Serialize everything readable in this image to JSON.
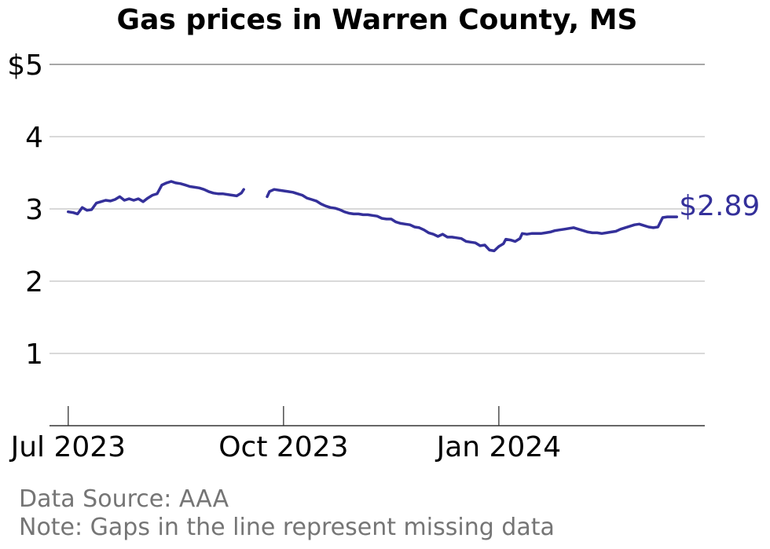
{
  "chart_data": {
    "type": "line",
    "title": "Gas prices in Warren County, MS",
    "xlabel": "",
    "ylabel": "",
    "ylim": [
      0,
      5
    ],
    "xlim": [
      "2023-06-23",
      "2024-03-29"
    ],
    "yticks": [
      {
        "value": 1,
        "label": "1"
      },
      {
        "value": 2,
        "label": "2"
      },
      {
        "value": 3,
        "label": "3"
      },
      {
        "value": 4,
        "label": "4"
      },
      {
        "value": 5,
        "label": "$5"
      }
    ],
    "xticks": [
      {
        "date": "2023-07-01",
        "label": "Jul 2023"
      },
      {
        "date": "2023-10-01",
        "label": "Oct 2023"
      },
      {
        "date": "2024-01-01",
        "label": "Jan 2024"
      }
    ],
    "grid": true,
    "end_label": "$2.89",
    "colors": {
      "line": "#34309a",
      "grid": "#b3b3b3",
      "axis": "#333333",
      "footnote": "#757575"
    },
    "series": [
      {
        "segments": [
          [
            [
              "2023-07-01",
              2.96
            ],
            [
              "2023-07-03",
              2.95
            ],
            [
              "2023-07-05",
              2.93
            ],
            [
              "2023-07-07",
              3.02
            ],
            [
              "2023-07-09",
              2.98
            ],
            [
              "2023-07-11",
              2.99
            ],
            [
              "2023-07-13",
              3.08
            ],
            [
              "2023-07-15",
              3.1
            ],
            [
              "2023-07-17",
              3.12
            ],
            [
              "2023-07-19",
              3.11
            ],
            [
              "2023-07-21",
              3.13
            ],
            [
              "2023-07-23",
              3.17
            ],
            [
              "2023-07-25",
              3.12
            ],
            [
              "2023-07-27",
              3.14
            ],
            [
              "2023-07-29",
              3.12
            ],
            [
              "2023-07-31",
              3.14
            ],
            [
              "2023-08-02",
              3.1
            ],
            [
              "2023-08-04",
              3.15
            ],
            [
              "2023-08-06",
              3.19
            ],
            [
              "2023-08-08",
              3.21
            ],
            [
              "2023-08-10",
              3.33
            ],
            [
              "2023-08-12",
              3.36
            ],
            [
              "2023-08-14",
              3.38
            ],
            [
              "2023-08-16",
              3.36
            ],
            [
              "2023-08-18",
              3.35
            ],
            [
              "2023-08-20",
              3.33
            ],
            [
              "2023-08-22",
              3.31
            ],
            [
              "2023-08-24",
              3.3
            ],
            [
              "2023-08-26",
              3.29
            ],
            [
              "2023-08-28",
              3.27
            ],
            [
              "2023-08-30",
              3.24
            ],
            [
              "2023-09-01",
              3.22
            ],
            [
              "2023-09-03",
              3.21
            ],
            [
              "2023-09-05",
              3.21
            ],
            [
              "2023-09-07",
              3.2
            ],
            [
              "2023-09-09",
              3.19
            ],
            [
              "2023-09-11",
              3.18
            ],
            [
              "2023-09-13",
              3.22
            ],
            [
              "2023-09-14",
              3.27
            ]
          ],
          [
            [
              "2023-09-24",
              3.17
            ],
            [
              "2023-09-25",
              3.24
            ],
            [
              "2023-09-27",
              3.27
            ],
            [
              "2023-09-29",
              3.26
            ],
            [
              "2023-10-01",
              3.25
            ],
            [
              "2023-10-03",
              3.24
            ],
            [
              "2023-10-05",
              3.23
            ],
            [
              "2023-10-07",
              3.21
            ],
            [
              "2023-10-09",
              3.19
            ],
            [
              "2023-10-11",
              3.15
            ],
            [
              "2023-10-13",
              3.13
            ],
            [
              "2023-10-15",
              3.11
            ],
            [
              "2023-10-17",
              3.07
            ],
            [
              "2023-10-19",
              3.04
            ],
            [
              "2023-10-21",
              3.02
            ],
            [
              "2023-10-23",
              3.01
            ],
            [
              "2023-10-25",
              2.99
            ],
            [
              "2023-10-27",
              2.96
            ],
            [
              "2023-10-29",
              2.94
            ],
            [
              "2023-10-31",
              2.93
            ],
            [
              "2023-11-02",
              2.93
            ],
            [
              "2023-11-04",
              2.92
            ],
            [
              "2023-11-06",
              2.92
            ],
            [
              "2023-11-08",
              2.91
            ],
            [
              "2023-11-10",
              2.9
            ],
            [
              "2023-11-12",
              2.87
            ],
            [
              "2023-11-14",
              2.86
            ],
            [
              "2023-11-16",
              2.86
            ],
            [
              "2023-11-18",
              2.82
            ],
            [
              "2023-11-20",
              2.8
            ],
            [
              "2023-11-22",
              2.79
            ],
            [
              "2023-11-24",
              2.78
            ],
            [
              "2023-11-26",
              2.75
            ],
            [
              "2023-11-28",
              2.74
            ],
            [
              "2023-11-30",
              2.71
            ],
            [
              "2023-12-02",
              2.67
            ],
            [
              "2023-12-04",
              2.65
            ],
            [
              "2023-12-06",
              2.62
            ],
            [
              "2023-12-08",
              2.65
            ],
            [
              "2023-12-10",
              2.61
            ],
            [
              "2023-12-12",
              2.61
            ],
            [
              "2023-12-14",
              2.6
            ],
            [
              "2023-12-16",
              2.59
            ],
            [
              "2023-12-18",
              2.55
            ],
            [
              "2023-12-20",
              2.54
            ],
            [
              "2023-12-22",
              2.53
            ],
            [
              "2023-12-24",
              2.49
            ],
            [
              "2023-12-26",
              2.5
            ],
            [
              "2023-12-28",
              2.43
            ],
            [
              "2023-12-30",
              2.42
            ],
            [
              "2024-01-01",
              2.48
            ],
            [
              "2024-01-03",
              2.52
            ],
            [
              "2024-01-04",
              2.58
            ],
            [
              "2024-01-06",
              2.57
            ],
            [
              "2024-01-08",
              2.55
            ],
            [
              "2024-01-10",
              2.59
            ],
            [
              "2024-01-11",
              2.66
            ],
            [
              "2024-01-13",
              2.65
            ],
            [
              "2024-01-15",
              2.66
            ],
            [
              "2024-01-17",
              2.66
            ],
            [
              "2024-01-19",
              2.66
            ],
            [
              "2024-01-21",
              2.67
            ],
            [
              "2024-01-23",
              2.68
            ],
            [
              "2024-01-25",
              2.7
            ],
            [
              "2024-01-27",
              2.71
            ],
            [
              "2024-01-29",
              2.72
            ],
            [
              "2024-01-31",
              2.73
            ],
            [
              "2024-02-02",
              2.74
            ],
            [
              "2024-02-04",
              2.72
            ],
            [
              "2024-02-06",
              2.7
            ],
            [
              "2024-02-08",
              2.68
            ],
            [
              "2024-02-10",
              2.67
            ],
            [
              "2024-02-12",
              2.67
            ],
            [
              "2024-02-14",
              2.66
            ],
            [
              "2024-02-16",
              2.67
            ],
            [
              "2024-02-18",
              2.68
            ],
            [
              "2024-02-20",
              2.69
            ],
            [
              "2024-02-22",
              2.72
            ],
            [
              "2024-02-24",
              2.74
            ],
            [
              "2024-02-26",
              2.76
            ],
            [
              "2024-02-28",
              2.78
            ],
            [
              "2024-03-01",
              2.79
            ],
            [
              "2024-03-03",
              2.77
            ],
            [
              "2024-03-05",
              2.75
            ],
            [
              "2024-03-07",
              2.74
            ],
            [
              "2024-03-09",
              2.75
            ],
            [
              "2024-03-11",
              2.88
            ],
            [
              "2024-03-13",
              2.89
            ],
            [
              "2024-03-15",
              2.89
            ],
            [
              "2024-03-17",
              2.89
            ]
          ]
        ]
      }
    ]
  },
  "footnotes": {
    "source": "Data Source: AAA",
    "note": "Note: Gaps in the line represent missing data"
  }
}
